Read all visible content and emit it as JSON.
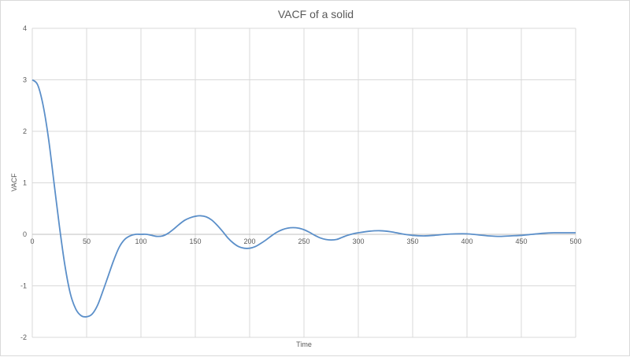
{
  "chart_data": {
    "type": "line",
    "title": "VACF of a solid",
    "xlabel": "Time",
    "ylabel": "VACF",
    "xlim": [
      0,
      500
    ],
    "ylim": [
      -2,
      4
    ],
    "x_ticks": [
      0,
      50,
      100,
      150,
      200,
      250,
      300,
      350,
      400,
      450,
      500
    ],
    "y_ticks": [
      -2,
      -1,
      0,
      1,
      2,
      3,
      4
    ],
    "grid": true,
    "legend": "none",
    "line_color": "#5b8fc9",
    "series": [
      {
        "x": [
          0,
          5,
          10,
          15,
          20,
          25,
          30,
          35,
          40,
          45,
          50,
          55,
          60,
          65,
          70,
          75,
          80,
          85,
          90,
          95,
          100,
          105,
          110,
          115,
          120,
          125,
          130,
          135,
          140,
          145,
          150,
          155,
          160,
          165,
          170,
          175,
          180,
          185,
          190,
          195,
          200,
          205,
          210,
          215,
          220,
          225,
          230,
          235,
          240,
          245,
          250,
          255,
          260,
          265,
          270,
          275,
          280,
          285,
          290,
          295,
          300,
          310,
          320,
          330,
          340,
          350,
          360,
          370,
          380,
          390,
          400,
          410,
          420,
          430,
          440,
          450,
          460,
          470,
          480,
          490,
          500
        ],
        "y": [
          3.0,
          2.9,
          2.5,
          1.85,
          1.0,
          0.15,
          -0.6,
          -1.15,
          -1.45,
          -1.58,
          -1.6,
          -1.55,
          -1.38,
          -1.1,
          -0.8,
          -0.5,
          -0.25,
          -0.1,
          -0.03,
          0.0,
          0.0,
          0.0,
          -0.02,
          -0.04,
          -0.03,
          0.02,
          0.1,
          0.19,
          0.27,
          0.32,
          0.35,
          0.36,
          0.34,
          0.28,
          0.18,
          0.06,
          -0.07,
          -0.17,
          -0.24,
          -0.27,
          -0.27,
          -0.24,
          -0.18,
          -0.11,
          -0.03,
          0.04,
          0.09,
          0.12,
          0.13,
          0.12,
          0.09,
          0.04,
          -0.02,
          -0.07,
          -0.1,
          -0.11,
          -0.1,
          -0.06,
          -0.02,
          0.01,
          0.03,
          0.06,
          0.07,
          0.05,
          0.01,
          -0.02,
          -0.03,
          -0.02,
          0.0,
          0.01,
          0.01,
          -0.01,
          -0.03,
          -0.04,
          -0.03,
          -0.02,
          0.0,
          0.02,
          0.03,
          0.03,
          0.03
        ]
      }
    ]
  }
}
